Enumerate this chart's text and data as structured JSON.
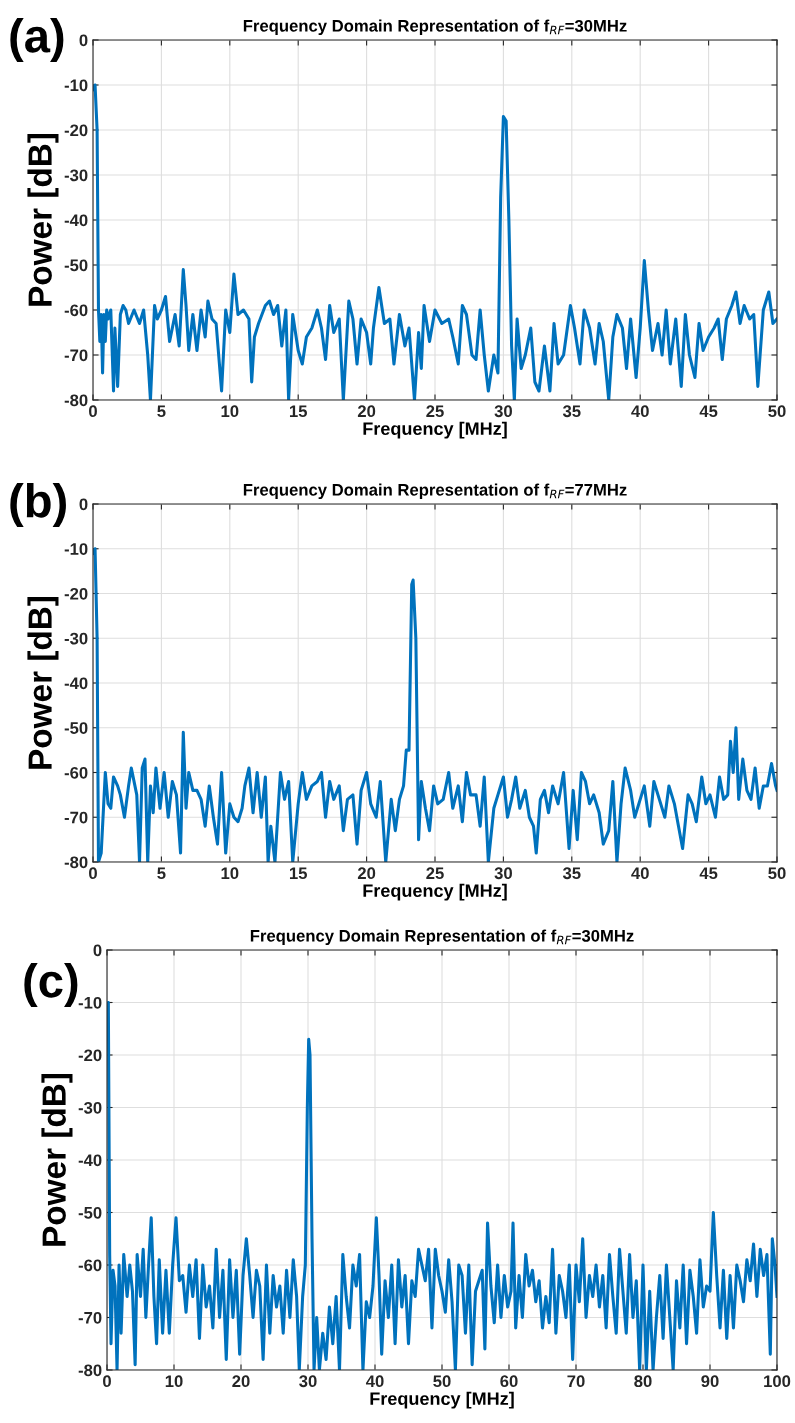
{
  "chart_data": [
    {
      "type": "line",
      "title": "Frequency Domain Representation of f$_{RF}$=30MHz",
      "xlabel": "Frequency [MHz]",
      "ylabel": "Power [dB]",
      "annotations": [
        "(a)"
      ],
      "xlim": [
        0,
        50
      ],
      "ylim": [
        -80,
        0
      ],
      "xticks": [
        0,
        5,
        10,
        15,
        20,
        25,
        30,
        35,
        40,
        45,
        50
      ],
      "yticks": [
        -80,
        -70,
        -60,
        -50,
        -40,
        -30,
        -20,
        -10,
        0
      ],
      "grid": true,
      "color": "#0072bd",
      "x": [
        0,
        0.15,
        0.3,
        0.4,
        0.5,
        0.6,
        0.7,
        0.8,
        0.9,
        1.0,
        1.1,
        1.3,
        1.5,
        1.6,
        1.8,
        2.0,
        2.2,
        2.4,
        2.6,
        3.0,
        3.4,
        3.7,
        4.0,
        4.2,
        4.5,
        4.7,
        5.0,
        5.3,
        5.6,
        6.0,
        6.3,
        6.6,
        6.8,
        7.0,
        7.3,
        7.6,
        7.9,
        8.2,
        8.4,
        8.7,
        9.0,
        9.4,
        9.7,
        10.0,
        10.3,
        10.6,
        11.0,
        11.4,
        11.6,
        11.8,
        12.1,
        12.6,
        12.9,
        13.2,
        13.5,
        13.8,
        14.1,
        14.3,
        14.6,
        15.0,
        15.3,
        15.6,
        16.0,
        16.4,
        16.7,
        17.0,
        17.3,
        17.6,
        18.0,
        18.3,
        18.7,
        19.0,
        19.3,
        19.6,
        20.0,
        20.3,
        20.5,
        20.9,
        21.3,
        21.7,
        22.0,
        22.4,
        22.8,
        23.1,
        23.5,
        23.8,
        24.0,
        24.2,
        24.6,
        25.0,
        25.5,
        26.0,
        26.3,
        26.7,
        27.0,
        27.3,
        27.7,
        28.0,
        28.3,
        28.6,
        28.9,
        29.3,
        29.6,
        29.8,
        30.0,
        30.2,
        30.4,
        30.6,
        30.8,
        31.0,
        31.3,
        31.6,
        32.0,
        32.3,
        32.6,
        33.0,
        33.4,
        33.7,
        34.0,
        34.4,
        34.9,
        35.2,
        35.6,
        35.9,
        36.3,
        36.7,
        37.0,
        37.3,
        37.7,
        38.0,
        38.3,
        38.7,
        39.0,
        39.3,
        39.7,
        40.0,
        40.3,
        40.6,
        40.9,
        41.3,
        41.6,
        41.9,
        42.2,
        42.6,
        43.0,
        43.3,
        43.6,
        44.0,
        44.3,
        44.6,
        45.0,
        45.4,
        45.7,
        46.0,
        46.3,
        46.7,
        47.0,
        47.3,
        47.6,
        48.0,
        48.3,
        48.6,
        49.0,
        49.4,
        49.7,
        50
      ],
      "values": [
        -11,
        -10,
        -20,
        -60,
        -67,
        -61,
        -74,
        -61,
        -67,
        -60,
        -62,
        -60,
        -78,
        -64,
        -77,
        -61,
        -59,
        -60,
        -63,
        -60,
        -63,
        -60,
        -70,
        -80,
        -59,
        -62,
        -60,
        -57,
        -67,
        -61,
        -68,
        -51,
        -59,
        -69,
        -61,
        -69,
        -60,
        -66,
        -58,
        -62,
        -63,
        -78,
        -60,
        -65,
        -52,
        -61,
        -60,
        -62,
        -76,
        -66,
        -63,
        -59,
        -58,
        -61,
        -59,
        -68,
        -60,
        -80,
        -61,
        -69,
        -72,
        -66,
        -64,
        -60,
        -64,
        -71,
        -59,
        -65,
        -62,
        -80,
        -58,
        -62,
        -72,
        -62,
        -65,
        -72,
        -64,
        -55,
        -63,
        -62,
        -72,
        -61,
        -68,
        -64,
        -80,
        -65,
        -73,
        -59,
        -67,
        -60,
        -63,
        -62,
        -66,
        -72,
        -59,
        -61,
        -70,
        -71,
        -60,
        -70,
        -78,
        -70,
        -74,
        -35,
        -17,
        -18,
        -40,
        -68,
        -80,
        -62,
        -73,
        -70,
        -64,
        -76,
        -78,
        -68,
        -78,
        -63,
        -72,
        -70,
        -59,
        -64,
        -72,
        -60,
        -64,
        -72,
        -63,
        -67,
        -80,
        -66,
        -61,
        -64,
        -73,
        -62,
        -75,
        -64,
        -49,
        -60,
        -69,
        -63,
        -70,
        -60,
        -72,
        -62,
        -77,
        -61,
        -70,
        -75,
        -63,
        -69,
        -66,
        -64,
        -62,
        -71,
        -62,
        -59,
        -56,
        -63,
        -59,
        -62,
        -61,
        -77,
        -60,
        -56,
        -63,
        -62
      ]
    },
    {
      "type": "line",
      "title": "Frequency Domain Representation of f$_{RF}$=77MHz",
      "xlabel": "Frequency [MHz]",
      "ylabel": "Power [dB]",
      "annotations": [
        "(b)"
      ],
      "xlim": [
        0,
        50
      ],
      "ylim": [
        -80,
        0
      ],
      "xticks": [
        0,
        5,
        10,
        15,
        20,
        25,
        30,
        35,
        40,
        45,
        50
      ],
      "yticks": [
        -80,
        -70,
        -60,
        -50,
        -40,
        -30,
        -20,
        -10,
        0
      ],
      "grid": true,
      "color": "#0072bd",
      "x": [
        0,
        0.15,
        0.3,
        0.4,
        0.6,
        0.8,
        0.9,
        1.1,
        1.3,
        1.5,
        1.8,
        2.0,
        2.3,
        2.6,
        2.8,
        3.2,
        3.4,
        3.6,
        3.8,
        4.0,
        4.2,
        4.4,
        4.6,
        4.9,
        5.2,
        5.5,
        5.8,
        6.1,
        6.4,
        6.6,
        6.8,
        7.0,
        7.3,
        7.6,
        7.9,
        8.2,
        8.5,
        8.8,
        9.1,
        9.4,
        9.7,
        10.0,
        10.3,
        10.6,
        10.9,
        11.1,
        11.4,
        11.7,
        12.0,
        12.3,
        12.6,
        12.8,
        13.0,
        13.3,
        13.7,
        14.0,
        14.3,
        14.6,
        15.0,
        15.3,
        15.6,
        16.0,
        16.4,
        16.7,
        17.0,
        17.3,
        17.6,
        18.0,
        18.3,
        18.6,
        19.0,
        19.3,
        19.6,
        20.0,
        20.3,
        20.7,
        21.0,
        21.4,
        21.8,
        22.1,
        22.4,
        22.7,
        22.9,
        23.1,
        23.3,
        23.4,
        23.6,
        23.8,
        24.0,
        24.3,
        24.6,
        24.9,
        25.2,
        25.6,
        26.0,
        26.3,
        26.7,
        27.0,
        27.3,
        27.6,
        28.0,
        28.3,
        28.6,
        28.9,
        29.3,
        29.6,
        30.0,
        30.3,
        30.6,
        30.9,
        31.2,
        31.6,
        31.9,
        32.2,
        32.4,
        32.7,
        33.0,
        33.3,
        33.6,
        34.0,
        34.4,
        34.8,
        35.1,
        35.4,
        35.7,
        36.0,
        36.3,
        36.6,
        37.0,
        37.3,
        37.7,
        38.0,
        38.3,
        38.6,
        38.9,
        39.3,
        39.6,
        40.0,
        40.3,
        40.7,
        41.0,
        41.4,
        41.8,
        42.1,
        42.5,
        42.8,
        43.1,
        43.5,
        43.8,
        44.1,
        44.5,
        44.8,
        45.1,
        45.5,
        45.8,
        46.1,
        46.4,
        46.6,
        46.8,
        47.0,
        47.2,
        47.5,
        47.8,
        48.1,
        48.4,
        48.7,
        49.0,
        49.3,
        49.6,
        49.9,
        50
      ],
      "values": [
        -11,
        -10,
        -30,
        -80,
        -78,
        -66,
        -60,
        -67,
        -68,
        -61,
        -63,
        -65,
        -70,
        -63,
        -59,
        -65,
        -80,
        -59,
        -57,
        -80,
        -63,
        -69,
        -59,
        -68,
        -60,
        -70,
        -62,
        -65,
        -78,
        -51,
        -68,
        -60,
        -64,
        -64,
        -66,
        -72,
        -63,
        -70,
        -76,
        -60,
        -78,
        -67,
        -70,
        -71,
        -68,
        -63,
        -59,
        -69,
        -60,
        -70,
        -61,
        -80,
        -72,
        -80,
        -60,
        -66,
        -62,
        -80,
        -67,
        -60,
        -66,
        -63,
        -62,
        -60,
        -70,
        -62,
        -66,
        -63,
        -73,
        -66,
        -65,
        -76,
        -64,
        -60,
        -67,
        -70,
        -62,
        -80,
        -66,
        -73,
        -66,
        -63,
        -55,
        -55,
        -18,
        -17,
        -30,
        -75,
        -62,
        -68,
        -73,
        -63,
        -67,
        -66,
        -60,
        -68,
        -63,
        -71,
        -60,
        -65,
        -65,
        -72,
        -61,
        -80,
        -68,
        -65,
        -61,
        -70,
        -66,
        -61,
        -68,
        -64,
        -70,
        -72,
        -78,
        -66,
        -64,
        -69,
        -63,
        -67,
        -60,
        -77,
        -64,
        -75,
        -60,
        -62,
        -67,
        -65,
        -69,
        -76,
        -73,
        -62,
        -80,
        -67,
        -59,
        -64,
        -70,
        -66,
        -63,
        -72,
        -62,
        -66,
        -70,
        -63,
        -67,
        -72,
        -77,
        -65,
        -67,
        -71,
        -61,
        -67,
        -65,
        -70,
        -61,
        -66,
        -65,
        -53,
        -60,
        -50,
        -66,
        -57,
        -64,
        -66,
        -59,
        -68,
        -63,
        -63,
        -58,
        -63,
        -64
      ]
    },
    {
      "type": "line",
      "title": "Frequency Domain Representation of f$_{RF}$=30MHz",
      "xlabel": "Frequency [MHz]",
      "ylabel": "Power [dB]",
      "annotations": [
        "(c)"
      ],
      "xlim": [
        0,
        100
      ],
      "ylim": [
        -80,
        0
      ],
      "xticks": [
        0,
        10,
        20,
        30,
        40,
        50,
        60,
        70,
        80,
        90,
        100
      ],
      "yticks": [
        -80,
        -70,
        -60,
        -50,
        -40,
        -30,
        -20,
        -10,
        0
      ],
      "grid": true,
      "color": "#0072bd",
      "x": [
        0,
        0.2,
        0.4,
        0.6,
        0.9,
        1.2,
        1.5,
        1.8,
        2.1,
        2.5,
        3.0,
        3.4,
        3.8,
        4.2,
        4.5,
        5.0,
        5.4,
        5.8,
        6.2,
        6.6,
        7.0,
        7.4,
        7.8,
        8.3,
        8.8,
        9.3,
        9.8,
        10.3,
        10.8,
        11.3,
        11.8,
        12.3,
        12.8,
        13.3,
        13.8,
        14.3,
        14.8,
        15.3,
        15.8,
        16.3,
        16.8,
        17.3,
        17.8,
        18.3,
        18.8,
        19.3,
        19.8,
        20.3,
        20.8,
        21.3,
        21.8,
        22.3,
        22.8,
        23.3,
        23.8,
        24.3,
        24.8,
        25.3,
        25.8,
        26.3,
        26.8,
        27.3,
        27.8,
        28.3,
        28.7,
        29.2,
        29.6,
        29.9,
        30.1,
        30.3,
        30.6,
        30.9,
        31.3,
        31.7,
        32.2,
        32.7,
        33.2,
        33.7,
        34.2,
        34.7,
        35.2,
        35.7,
        36.2,
        36.7,
        37.2,
        37.7,
        38.2,
        38.7,
        39.2,
        39.7,
        40.2,
        40.6,
        41.0,
        41.5,
        42.0,
        42.5,
        43.0,
        43.5,
        44.0,
        44.5,
        45.0,
        45.5,
        46.0,
        46.5,
        47.0,
        47.5,
        48.0,
        48.5,
        49.0,
        49.5,
        50.0,
        50.5,
        51.0,
        51.5,
        52.0,
        52.5,
        53.0,
        53.5,
        54.0,
        54.5,
        55.0,
        55.5,
        56.0,
        56.4,
        56.8,
        57.3,
        57.8,
        58.3,
        58.8,
        59.3,
        59.8,
        60.3,
        60.6,
        61.0,
        61.5,
        62.0,
        62.5,
        63.0,
        63.5,
        64.0,
        64.5,
        65.0,
        65.5,
        66.0,
        66.5,
        67.0,
        67.5,
        68.0,
        68.5,
        69.0,
        69.5,
        70.0,
        70.5,
        71.0,
        71.5,
        72.0,
        72.5,
        73.0,
        73.5,
        74.0,
        74.5,
        75.0,
        75.5,
        76.0,
        76.5,
        77.0,
        77.5,
        78.0,
        78.5,
        79.0,
        79.5,
        80.0,
        80.5,
        81.0,
        81.5,
        82.0,
        82.5,
        83.0,
        83.5,
        84.0,
        84.5,
        85.0,
        85.5,
        86.0,
        86.5,
        87.0,
        87.5,
        88.0,
        88.5,
        89.0,
        89.5,
        90.0,
        90.5,
        91.0,
        91.5,
        92.0,
        92.5,
        93.0,
        93.5,
        94.0,
        94.5,
        95.0,
        95.5,
        96.0,
        96.5,
        97.0,
        97.5,
        98.0,
        98.5,
        99.0,
        99.3,
        99.7,
        100
      ],
      "values": [
        -11,
        -10,
        -58,
        -75,
        -61,
        -64,
        -80,
        -60,
        -73,
        -58,
        -66,
        -60,
        -65,
        -79,
        -58,
        -66,
        -57,
        -70,
        -60,
        -51,
        -66,
        -75,
        -59,
        -73,
        -61,
        -73,
        -60,
        -51,
        -63,
        -62,
        -69,
        -60,
        -66,
        -59,
        -74,
        -60,
        -68,
        -64,
        -72,
        -57,
        -70,
        -61,
        -78,
        -59,
        -70,
        -61,
        -77,
        -62,
        -55,
        -62,
        -70,
        -61,
        -64,
        -78,
        -60,
        -73,
        -62,
        -68,
        -64,
        -73,
        -61,
        -70,
        -59,
        -66,
        -80,
        -66,
        -60,
        -30,
        -17,
        -20,
        -55,
        -80,
        -70,
        -80,
        -73,
        -78,
        -68,
        -75,
        -66,
        -80,
        -58,
        -66,
        -72,
        -60,
        -64,
        -58,
        -80,
        -67,
        -70,
        -64,
        -51,
        -62,
        -77,
        -63,
        -70,
        -60,
        -75,
        -59,
        -68,
        -62,
        -75,
        -63,
        -66,
        -57,
        -60,
        -63,
        -57,
        -72,
        -57,
        -62,
        -65,
        -69,
        -59,
        -67,
        -80,
        -60,
        -62,
        -73,
        -60,
        -79,
        -65,
        -63,
        -61,
        -76,
        -52,
        -64,
        -71,
        -60,
        -70,
        -62,
        -68,
        -65,
        -52,
        -72,
        -62,
        -70,
        -58,
        -64,
        -61,
        -67,
        -63,
        -72,
        -66,
        -71,
        -57,
        -73,
        -62,
        -65,
        -70,
        -60,
        -78,
        -60,
        -67,
        -55,
        -70,
        -62,
        -66,
        -60,
        -68,
        -62,
        -72,
        -58,
        -66,
        -73,
        -57,
        -65,
        -73,
        -58,
        -70,
        -63,
        -80,
        -60,
        -80,
        -65,
        -80,
        -70,
        -62,
        -74,
        -60,
        -70,
        -80,
        -63,
        -72,
        -60,
        -75,
        -61,
        -66,
        -73,
        -59,
        -68,
        -64,
        -65,
        -50,
        -62,
        -72,
        -61,
        -74,
        -62,
        -72,
        -60,
        -63,
        -67,
        -59,
        -63,
        -56,
        -66,
        -57,
        -62,
        -58,
        -77,
        -55,
        -60,
        -66
      ]
    }
  ]
}
